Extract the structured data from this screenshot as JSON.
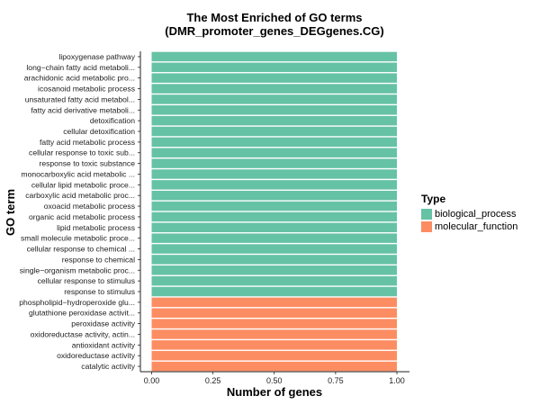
{
  "chart_data": {
    "type": "bar",
    "orientation": "horizontal",
    "title": [
      "The Most Enriched of GO terms",
      "(DMR_promoter_genes_DEGgenes.CG)"
    ],
    "xlabel": "Number of genes",
    "ylabel": "GO term",
    "xlim": [
      0,
      1
    ],
    "x_ticks": [
      "0.00",
      "0.25",
      "0.50",
      "0.75",
      "1.00"
    ],
    "grid": false,
    "legend": {
      "title": "Type",
      "placement": "right",
      "entries": [
        {
          "label": "biological_process",
          "color": "#66c2a5"
        },
        {
          "label": "molecular_function",
          "color": "#fc8d62"
        }
      ]
    },
    "categories": [
      "lipoxygenase pathway",
      "long−chain fatty acid metaboli...",
      "arachidonic acid metabolic pro...",
      "icosanoid metabolic process",
      "unsaturated fatty acid metabol...",
      "fatty acid derivative metaboli...",
      "detoxification",
      "cellular detoxification",
      "fatty acid metabolic process",
      "cellular response to toxic sub...",
      "response to toxic substance",
      "monocarboxylic acid metabolic ...",
      "cellular lipid metabolic proce...",
      "carboxylic acid metabolic proc...",
      "oxoacid metabolic process",
      "organic acid metabolic process",
      "lipid metabolic process",
      "small molecule metabolic proce...",
      "cellular response to chemical ...",
      "response to chemical",
      "single−organism metabolic proc...",
      "cellular response to stimulus",
      "response to stimulus",
      "phospholipid−hydroperoxide glu...",
      "glutathione peroxidase activit...",
      "peroxidase activity",
      "oxidoreductase activity, actin...",
      "antioxidant activity",
      "oxidoreductase activity",
      "catalytic activity"
    ],
    "values": [
      1,
      1,
      1,
      1,
      1,
      1,
      1,
      1,
      1,
      1,
      1,
      1,
      1,
      1,
      1,
      1,
      1,
      1,
      1,
      1,
      1,
      1,
      1,
      1,
      1,
      1,
      1,
      1,
      1,
      1
    ],
    "types": [
      "biological_process",
      "biological_process",
      "biological_process",
      "biological_process",
      "biological_process",
      "biological_process",
      "biological_process",
      "biological_process",
      "biological_process",
      "biological_process",
      "biological_process",
      "biological_process",
      "biological_process",
      "biological_process",
      "biological_process",
      "biological_process",
      "biological_process",
      "biological_process",
      "biological_process",
      "biological_process",
      "biological_process",
      "biological_process",
      "biological_process",
      "molecular_function",
      "molecular_function",
      "molecular_function",
      "molecular_function",
      "molecular_function",
      "molecular_function",
      "molecular_function"
    ]
  }
}
